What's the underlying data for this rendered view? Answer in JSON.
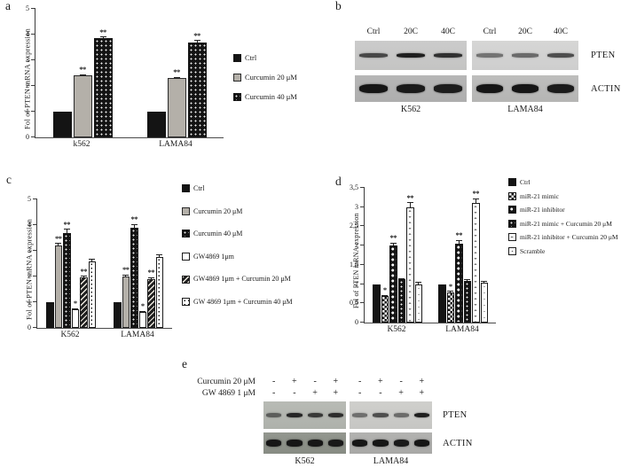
{
  "figure": {
    "panels": {
      "a": {
        "label": "a"
      },
      "b": {
        "label": "b"
      },
      "c": {
        "label": "c"
      },
      "d": {
        "label": "d"
      },
      "e": {
        "label": "e"
      }
    }
  },
  "chart_data": [
    {
      "id": "a",
      "panel": "a",
      "type": "bar",
      "title": "",
      "xlabel": "",
      "ylabel": "Fol of PTEN mRNA expression",
      "ylim": [
        0,
        5
      ],
      "yticks": [
        "0",
        "1",
        "2",
        "3",
        "4",
        "5"
      ],
      "grid": false,
      "legend_position": "right",
      "categories": [
        "k562",
        "LAMA84"
      ],
      "series": [
        {
          "name": "Ctrl",
          "pattern": "black",
          "values": [
            1.0,
            1.0
          ],
          "err": [
            0,
            0
          ],
          "sig": [
            "",
            ""
          ]
        },
        {
          "name": "Curcumin 20 μM",
          "pattern": "gray",
          "values": [
            2.4,
            2.3
          ],
          "err": [
            0.05,
            0.05
          ],
          "sig": [
            "**",
            "**"
          ]
        },
        {
          "name": "Curcumin 40 μM",
          "pattern": "blackdots",
          "values": [
            3.85,
            3.7
          ],
          "err": [
            0.07,
            0.08
          ],
          "sig": [
            "**",
            "**"
          ]
        }
      ]
    },
    {
      "id": "c",
      "panel": "c",
      "type": "bar",
      "title": "",
      "xlabel": "",
      "ylabel": "Fol of PTEN mRNA expression",
      "ylim": [
        0,
        5
      ],
      "yticks": [
        "0",
        "1",
        "2",
        "3",
        "4",
        "5"
      ],
      "grid": false,
      "legend_position": "right",
      "categories": [
        "K562",
        "LAMA84"
      ],
      "series": [
        {
          "name": "Ctrl",
          "pattern": "black",
          "values": [
            1.0,
            1.0
          ],
          "err": [
            0,
            0
          ],
          "sig": [
            "",
            ""
          ]
        },
        {
          "name": "Curcumin 20 μM",
          "pattern": "gray",
          "values": [
            3.2,
            2.0
          ],
          "err": [
            0.1,
            0.08
          ],
          "sig": [
            "**",
            "**"
          ]
        },
        {
          "name": "Curcumin 40 μM",
          "pattern": "blackdots",
          "values": [
            3.7,
            3.9
          ],
          "err": [
            0.15,
            0.15
          ],
          "sig": [
            "**",
            "**"
          ]
        },
        {
          "name": "GW4869 1μm",
          "pattern": "white",
          "values": [
            0.72,
            0.62
          ],
          "err": [
            0.05,
            0.05
          ],
          "sig": [
            "*",
            "*"
          ]
        },
        {
          "name": "GW4869 1μm + Curcumin 20 μM",
          "pattern": "hatch",
          "values": [
            1.95,
            1.9
          ],
          "err": [
            0.07,
            0.07
          ],
          "sig": [
            "**",
            "**"
          ]
        },
        {
          "name": "GW 4869 1μm + Curcumin 40 μM",
          "pattern": "stipple",
          "values": [
            2.6,
            2.75
          ],
          "err": [
            0.1,
            0.1
          ],
          "sig": [
            "",
            ""
          ]
        }
      ]
    },
    {
      "id": "d",
      "panel": "d",
      "type": "bar",
      "title": "",
      "xlabel": "",
      "ylabel": "Fol of PTEN mRNA expression",
      "ylim": [
        0,
        3.5
      ],
      "yticks": [
        "0",
        "0,5",
        "1",
        "1,5",
        "2",
        "2,5",
        "3",
        "3,5"
      ],
      "grid": false,
      "legend_position": "right",
      "categories": [
        "K562",
        "LAMA84"
      ],
      "series": [
        {
          "name": "Ctrl",
          "pattern": "black",
          "values": [
            1.0,
            1.0
          ],
          "err": [
            0,
            0
          ],
          "sig": [
            "",
            ""
          ]
        },
        {
          "name": "miR-21 mimic",
          "pattern": "checker",
          "values": [
            0.68,
            0.78
          ],
          "err": [
            0.04,
            0.04
          ],
          "sig": [
            "*",
            "*"
          ]
        },
        {
          "name": "miR-21 inhibitor",
          "pattern": "checkerbig",
          "values": [
            2.0,
            2.05
          ],
          "err": [
            0.08,
            0.1
          ],
          "sig": [
            "**",
            "**"
          ]
        },
        {
          "name": "miR-21 mimic + Curcumin 20 μM",
          "pattern": "blackdots",
          "values": [
            1.12,
            1.08
          ],
          "err": [
            0.04,
            0.04
          ],
          "sig": [
            "",
            ""
          ]
        },
        {
          "name": "miR-21 inhibitor + Curcumin 20 μM",
          "pattern": "whitedash",
          "values": [
            3.0,
            3.1
          ],
          "err": [
            0.13,
            0.13
          ],
          "sig": [
            "**",
            "**"
          ]
        },
        {
          "name": "Scramble",
          "pattern": "lightstipple",
          "values": [
            1.0,
            1.03
          ],
          "err": [
            0.05,
            0.05
          ],
          "sig": [
            "",
            ""
          ]
        }
      ]
    }
  ],
  "blots": [
    {
      "id": "b",
      "panel": "b",
      "lane_labels": [
        "Ctrl",
        "20C",
        "40C"
      ],
      "row_labels": [
        "PTEN",
        "ACTIN"
      ],
      "groups": [
        {
          "cell_line": "K562",
          "PTEN_bands": [
            0.72,
            0.95,
            0.85
          ],
          "ACTIN_bands": [
            1,
            0.97,
            0.95
          ]
        },
        {
          "cell_line": "LAMA84",
          "PTEN_bands": [
            0.5,
            0.55,
            0.7
          ],
          "ACTIN_bands": [
            1,
            1,
            0.97
          ]
        }
      ]
    },
    {
      "id": "e",
      "panel": "e",
      "treatments": [
        {
          "label": "Curcumin 20 μM",
          "signs": [
            "-",
            "+",
            "-",
            "+",
            "-",
            "+",
            "-",
            "+"
          ]
        },
        {
          "label": "GW 4869 1 μM",
          "signs": [
            "-",
            "-",
            "+",
            "+",
            "-",
            "-",
            "+",
            "+"
          ]
        }
      ],
      "row_labels": [
        "PTEN",
        "ACTIN"
      ],
      "groups": [
        {
          "cell_line": "K562",
          "PTEN_bands": [
            0.55,
            0.9,
            0.78,
            0.85
          ],
          "ACTIN_bands": [
            1,
            1,
            1,
            0.97
          ]
        },
        {
          "cell_line": "LAMA84",
          "PTEN_bands": [
            0.5,
            0.68,
            0.52,
            0.95
          ],
          "ACTIN_bands": [
            1,
            1,
            0.97,
            1
          ]
        }
      ]
    }
  ]
}
